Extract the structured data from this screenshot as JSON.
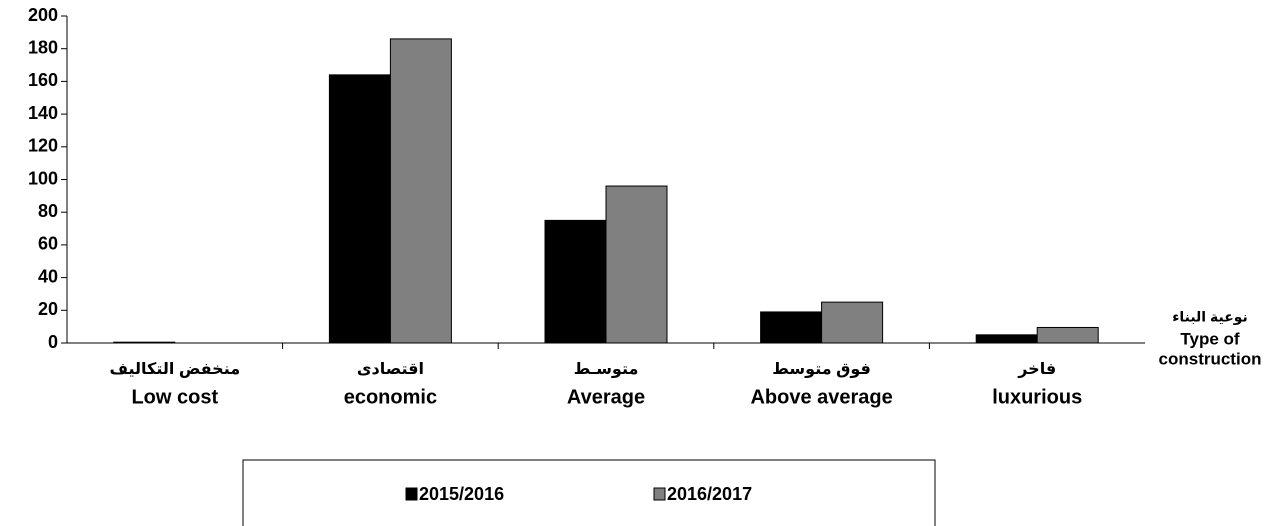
{
  "chart_data": {
    "type": "bar",
    "categories": [
      [
        "منخفض التكاليف",
        "Low cost"
      ],
      [
        "اقتصادى",
        "economic"
      ],
      [
        "متوسـط",
        "Average"
      ],
      [
        "فوق متوسط",
        "Above average"
      ],
      [
        "فاخر",
        "luxurious"
      ]
    ],
    "series": [
      {
        "name": "2015/2016",
        "color": "#000000",
        "values": [
          0.5,
          164,
          75,
          19,
          5
        ]
      },
      {
        "name": "2016/2017",
        "color": "#808080",
        "values": [
          0,
          186,
          96,
          25,
          9.5
        ]
      }
    ],
    "x_label": [
      "نوعية البناء",
      "Type of",
      "construction"
    ],
    "ylim": [
      0,
      200
    ],
    "yticks": [
      0,
      20,
      40,
      60,
      80,
      100,
      120,
      140,
      160,
      180,
      200
    ],
    "grid": false
  }
}
